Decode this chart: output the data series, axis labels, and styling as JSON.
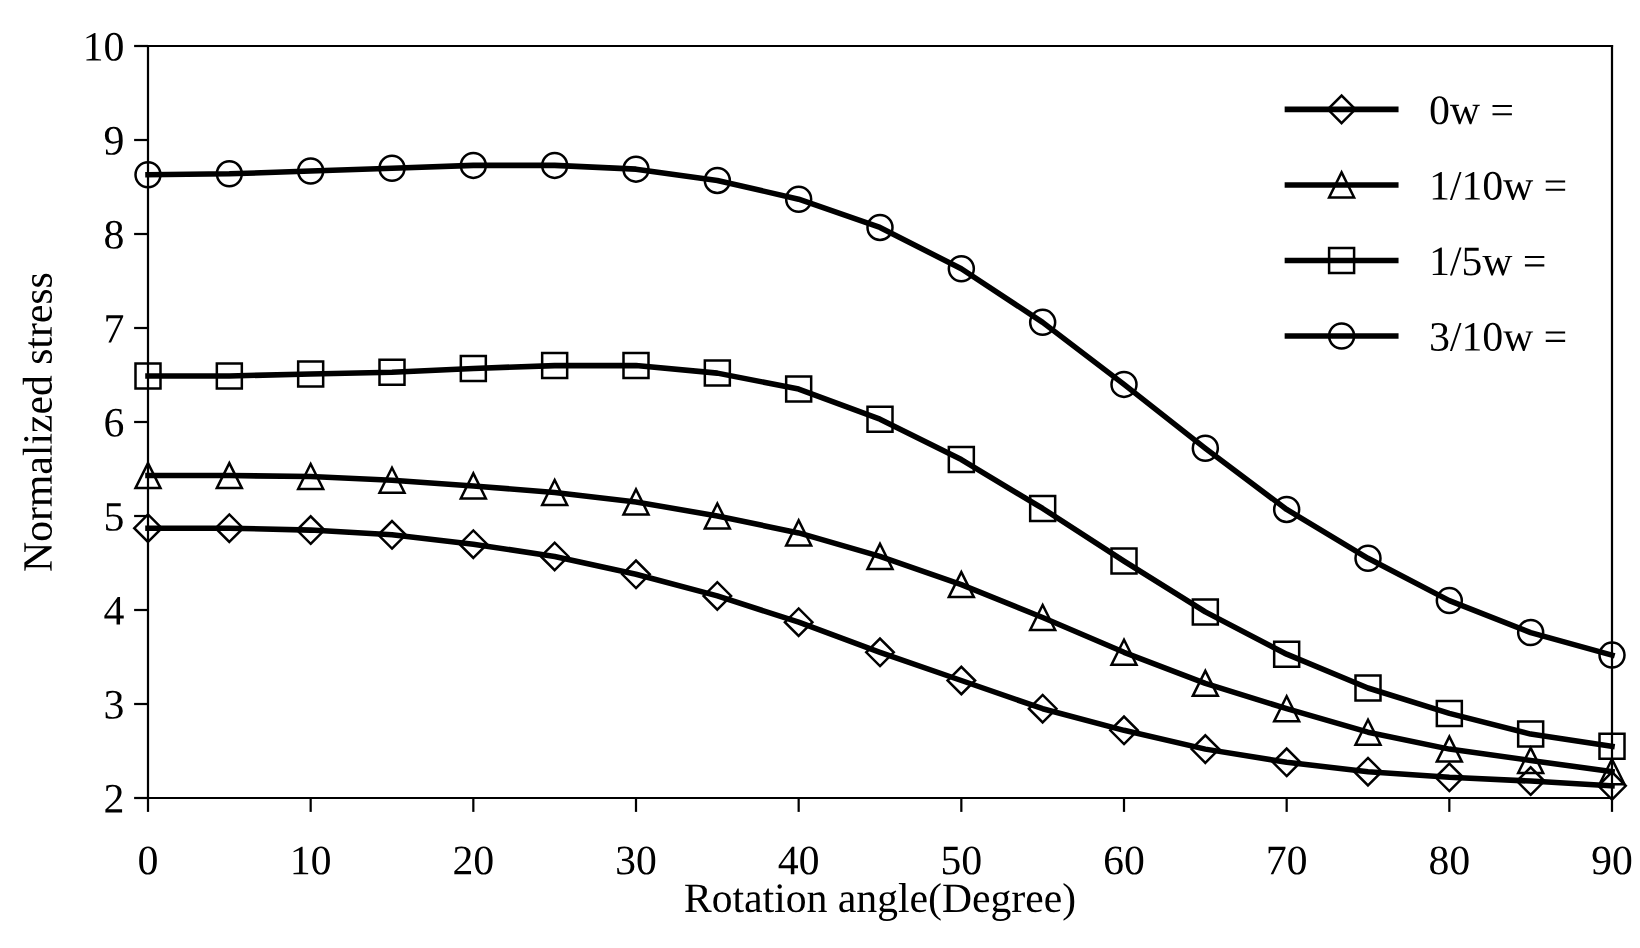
{
  "chart_data": {
    "type": "line",
    "xlabel": "Rotation angle(Degree)",
    "ylabel": "Normalized stress",
    "x": [
      0,
      5,
      10,
      15,
      20,
      25,
      30,
      35,
      40,
      45,
      50,
      55,
      60,
      65,
      70,
      75,
      80,
      85,
      90
    ],
    "series": [
      {
        "name": "0w =",
        "color": "#000000",
        "marker": "diamond",
        "values": [
          4.87,
          4.87,
          4.85,
          4.8,
          4.7,
          4.57,
          4.38,
          4.15,
          3.87,
          3.55,
          3.25,
          2.95,
          2.72,
          2.52,
          2.38,
          2.28,
          2.22,
          2.18,
          2.13
        ]
      },
      {
        "name": "1/10w =",
        "color": "#000000",
        "marker": "triangle",
        "values": [
          5.43,
          5.43,
          5.42,
          5.38,
          5.32,
          5.25,
          5.15,
          5.0,
          4.82,
          4.57,
          4.27,
          3.92,
          3.55,
          3.22,
          2.95,
          2.7,
          2.52,
          2.4,
          2.28
        ]
      },
      {
        "name": "1/5w =",
        "color": "#000000",
        "marker": "square",
        "values": [
          6.49,
          6.49,
          6.51,
          6.53,
          6.57,
          6.6,
          6.6,
          6.52,
          6.35,
          6.03,
          5.6,
          5.08,
          4.52,
          3.98,
          3.53,
          3.17,
          2.9,
          2.68,
          2.55
        ]
      },
      {
        "name": "3/10w =",
        "color": "#000000",
        "marker": "circle",
        "values": [
          8.63,
          8.64,
          8.67,
          8.7,
          8.73,
          8.73,
          8.69,
          8.57,
          8.37,
          8.07,
          7.63,
          7.06,
          6.4,
          5.72,
          5.07,
          4.55,
          4.1,
          3.76,
          3.52
        ]
      }
    ],
    "xlim": [
      0,
      90
    ],
    "xticks": [
      0,
      10,
      20,
      30,
      40,
      50,
      60,
      70,
      80,
      90
    ],
    "ylim": [
      2,
      10
    ],
    "yticks": [
      2,
      3,
      4,
      5,
      6,
      7,
      8,
      9,
      10
    ],
    "grid": false,
    "legend": "top right",
    "line_style": "solid"
  }
}
